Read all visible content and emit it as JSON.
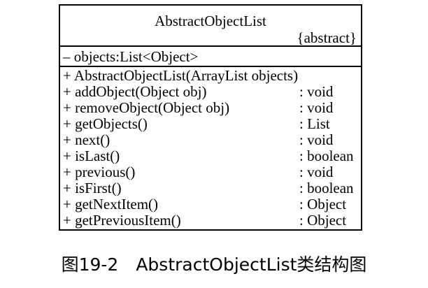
{
  "class_box": {
    "name": "AbstractObjectList",
    "stereotype": "{abstract}",
    "attributes": [
      "– objects:List<Object>"
    ],
    "operations": [
      {
        "signature": "+ AbstractObjectList(ArrayList objects)",
        "return": ""
      },
      {
        "signature": "+ addObject(Object obj)",
        "return": ": void"
      },
      {
        "signature": "+ removeObject(Object obj)",
        "return": ": void"
      },
      {
        "signature": "+ getObjects()",
        "return": ": List"
      },
      {
        "signature": "+ next()",
        "return": ": void"
      },
      {
        "signature": "+ isLast()",
        "return": ": boolean"
      },
      {
        "signature": "+ previous()",
        "return": ": void"
      },
      {
        "signature": "+ isFirst()",
        "return": ": boolean"
      },
      {
        "signature": "+ getNextItem()",
        "return": ": Object"
      },
      {
        "signature": "+ getPreviousItem()",
        "return": ": Object"
      }
    ]
  },
  "caption": "图19-2　AbstractObjectList类结构图"
}
